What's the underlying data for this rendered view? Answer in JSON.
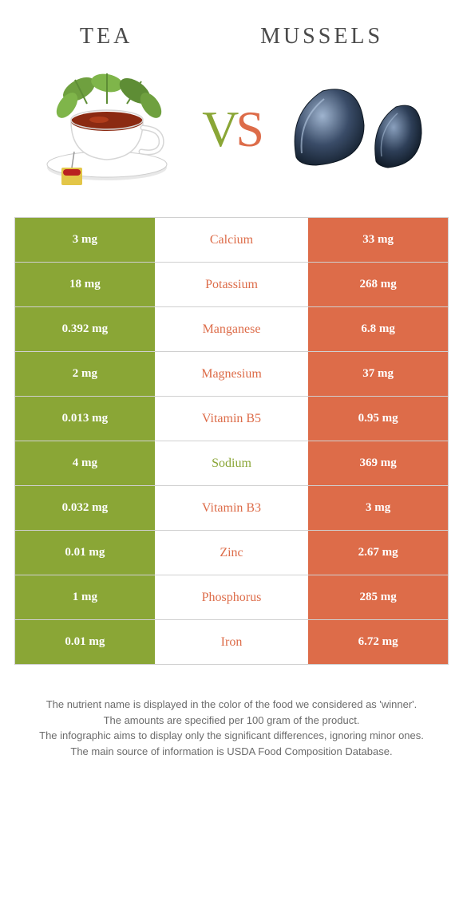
{
  "header": {
    "left_title": "Tea",
    "right_title": "Mussels"
  },
  "vs": {
    "v": "V",
    "s": "S"
  },
  "colors": {
    "green": "#8aa636",
    "orange": "#dd6c49",
    "border": "#d0d0d0",
    "bg": "#ffffff"
  },
  "rows": [
    {
      "left": "3 mg",
      "label": "Calcium",
      "right": "33 mg",
      "winner": "orange"
    },
    {
      "left": "18 mg",
      "label": "Potassium",
      "right": "268 mg",
      "winner": "orange"
    },
    {
      "left": "0.392 mg",
      "label": "Manganese",
      "right": "6.8 mg",
      "winner": "orange"
    },
    {
      "left": "2 mg",
      "label": "Magnesium",
      "right": "37 mg",
      "winner": "orange"
    },
    {
      "left": "0.013 mg",
      "label": "Vitamin B5",
      "right": "0.95 mg",
      "winner": "orange"
    },
    {
      "left": "4 mg",
      "label": "Sodium",
      "right": "369 mg",
      "winner": "green"
    },
    {
      "left": "0.032 mg",
      "label": "Vitamin B3",
      "right": "3 mg",
      "winner": "orange"
    },
    {
      "left": "0.01 mg",
      "label": "Zinc",
      "right": "2.67 mg",
      "winner": "orange"
    },
    {
      "left": "1 mg",
      "label": "Phosphorus",
      "right": "285 mg",
      "winner": "orange"
    },
    {
      "left": "0.01 mg",
      "label": "Iron",
      "right": "6.72 mg",
      "winner": "orange"
    }
  ],
  "footer": {
    "line1": "The nutrient name is displayed in the color of the food we considered as 'winner'.",
    "line2": "The amounts are specified per 100 gram of the product.",
    "line3": "The infographic aims to display only the significant differences, ignoring minor ones.",
    "line4": "The main source of information is USDA Food Composition Database."
  }
}
